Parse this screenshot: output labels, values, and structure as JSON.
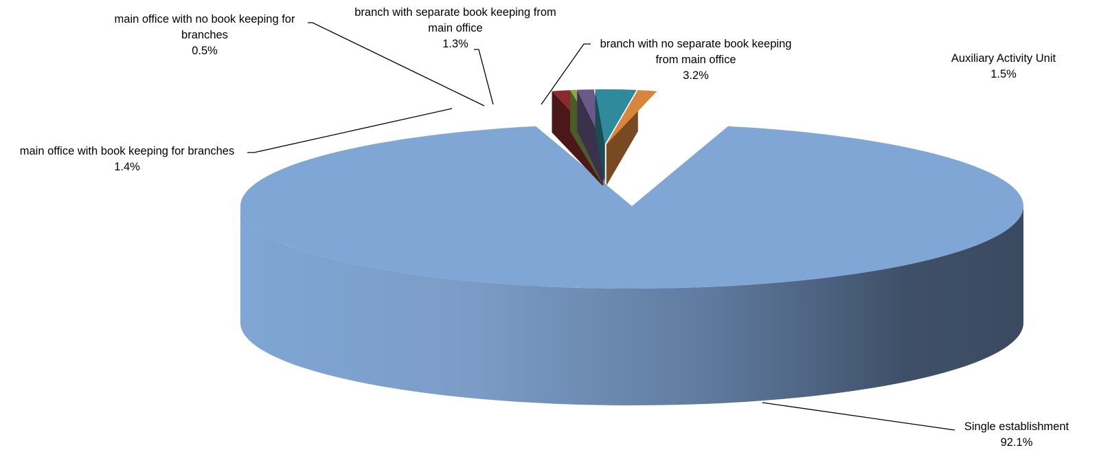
{
  "chart_data": {
    "type": "pie",
    "style": "3d-exploded",
    "slices": [
      {
        "label_lines": [
          "Single establishment"
        ],
        "value": 92.1,
        "value_label": "92.1%",
        "color": "#7fa6d4"
      },
      {
        "label_lines": [
          "main office with book keeping for branches"
        ],
        "value": 1.4,
        "value_label": "1.4%",
        "color": "#8b2a2a"
      },
      {
        "label_lines": [
          "main office with no book keeping for",
          "branches"
        ],
        "value": 0.5,
        "value_label": "0.5%",
        "color": "#8aa84a"
      },
      {
        "label_lines": [
          "branch with separate book keeping from",
          "main office"
        ],
        "value": 1.3,
        "value_label": "1.3%",
        "color": "#6a5a8c"
      },
      {
        "label_lines": [
          "branch with no separate book keeping",
          "from main office"
        ],
        "value": 3.2,
        "value_label": "3.2%",
        "color": "#2f8a9c"
      },
      {
        "label_lines": [
          "Auxiliary Activity Unit"
        ],
        "value": 1.5,
        "value_label": "1.5%",
        "color": "#d8863c"
      }
    ]
  }
}
